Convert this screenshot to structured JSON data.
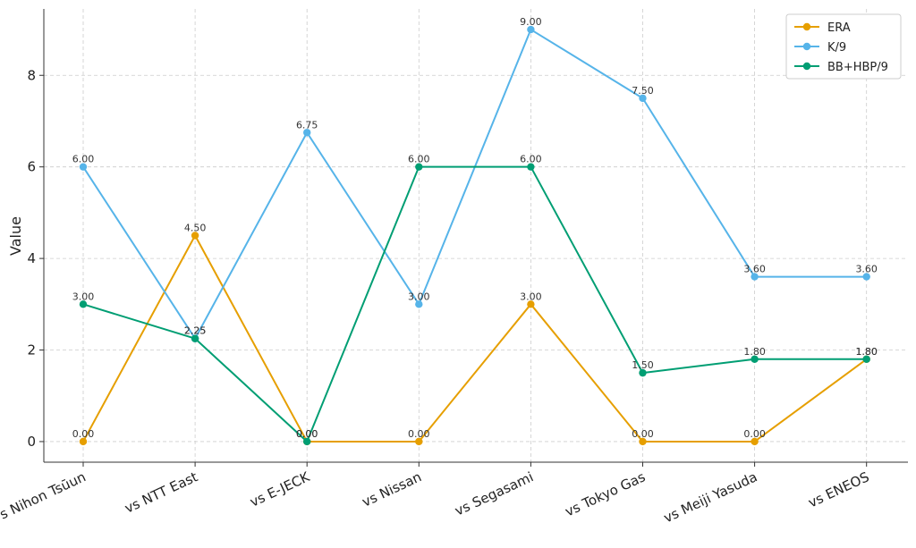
{
  "chart_data": {
    "type": "line",
    "title": "",
    "xlabel": "",
    "ylabel": "Value",
    "categories": [
      "vs Nihon Tsūun",
      "vs NTT East",
      "vs E-JECK",
      "vs Nissan",
      "vs Segasami",
      "vs Tokyo Gas",
      "vs Meiji Yasuda",
      "vs ENEOS"
    ],
    "ylim": [
      -0.45,
      9.45
    ],
    "yticks": [
      0,
      2,
      4,
      6,
      8
    ],
    "grid": true,
    "legend_position": "top-right",
    "series": [
      {
        "name": "ERA",
        "color": "#E69F00",
        "values": [
          0.0,
          4.5,
          0.0,
          0.0,
          3.0,
          0.0,
          0.0,
          1.8
        ],
        "labels": [
          "0.00",
          "4.50",
          "0.00",
          "0.00",
          "3.00",
          "0.00",
          "0.00",
          "1.80"
        ]
      },
      {
        "name": "K/9",
        "color": "#56B4E9",
        "values": [
          6.0,
          2.25,
          6.75,
          3.0,
          9.0,
          7.5,
          3.6,
          3.6
        ],
        "labels": [
          "6.00",
          "2.25",
          "6.75",
          "3.00",
          "9.00",
          "7.50",
          "3.60",
          "3.60"
        ]
      },
      {
        "name": "BB+HBP/9",
        "color": "#009E73",
        "values": [
          3.0,
          2.25,
          0.0,
          6.0,
          6.0,
          1.5,
          1.8,
          1.8
        ],
        "labels": [
          "3.00",
          "2.25",
          "0.00",
          "6.00",
          "6.00",
          "1.50",
          "1.80",
          "1.80"
        ]
      }
    ]
  }
}
